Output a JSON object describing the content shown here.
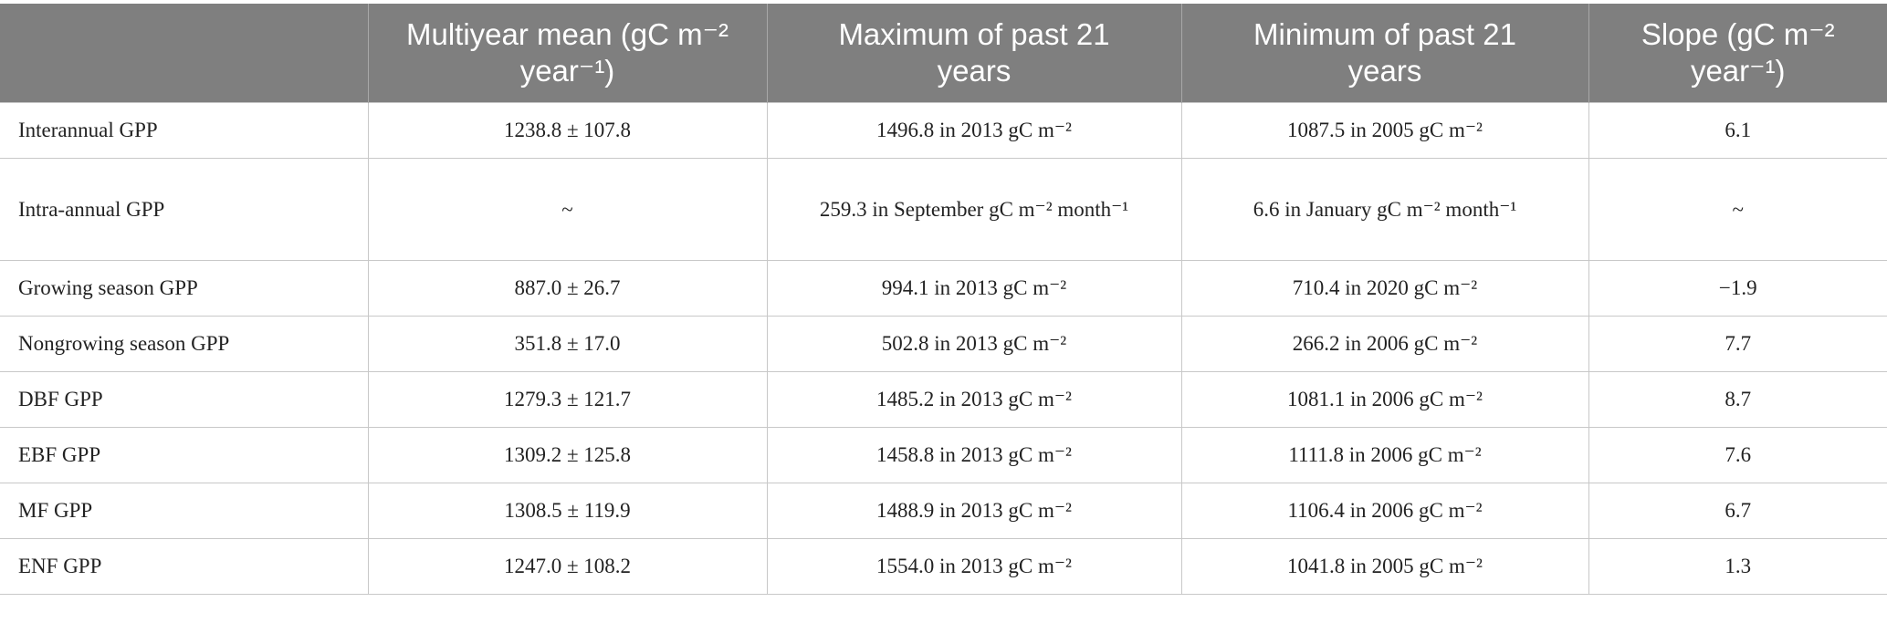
{
  "table": {
    "headers": [
      "Multiyear mean (gC m⁻² year⁻¹)",
      "Maximum of past 21 years",
      "Minimum of past 21 years",
      "Slope (gC m⁻² year⁻¹)"
    ],
    "rows": [
      [
        "Interannual GPP",
        "1238.8 ± 107.8",
        "1496.8 in 2013 gC m⁻²",
        "1087.5 in 2005 gC m⁻²",
        "6.1"
      ],
      [
        "Intra-annual GPP",
        "~",
        "259.3 in September gC m⁻² month⁻¹",
        "6.6 in January gC m⁻² month⁻¹",
        "~"
      ],
      [
        "Growing season GPP",
        "887.0 ± 26.7",
        "994.1 in 2013 gC m⁻²",
        "710.4 in 2020 gC m⁻²",
        "−1.9"
      ],
      [
        "Nongrowing season GPP",
        "351.8 ± 17.0",
        "502.8 in 2013 gC m⁻²",
        "266.2 in 2006 gC m⁻²",
        "7.7"
      ],
      [
        "DBF GPP",
        "1279.3 ± 121.7",
        "1485.2 in 2013 gC m⁻²",
        "1081.1 in 2006 gC m⁻²",
        "8.7"
      ],
      [
        "EBF GPP",
        "1309.2 ± 125.8",
        "1458.8 in 2013 gC m⁻²",
        "1111.8 in 2006 gC m⁻²",
        "7.6"
      ],
      [
        "MF GPP",
        "1308.5 ± 119.9",
        "1488.9 in 2013 gC m⁻²",
        "1106.4 in 2006 gC m⁻²",
        "6.7"
      ],
      [
        "ENF GPP",
        "1247.0 ± 108.2",
        "1554.0 in 2013 gC m⁻²",
        "1041.8 in 2005 gC m⁻²",
        "1.3"
      ]
    ]
  }
}
